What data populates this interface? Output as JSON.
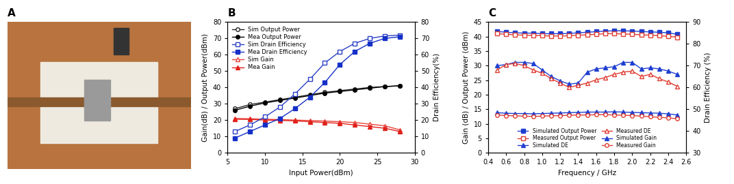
{
  "chart_data": [
    {
      "type": "photo",
      "title": "A"
    },
    {
      "type": "line",
      "title": "B",
      "x_label": "Input Power(dBm)",
      "y_label": "Gain(dB) / Output Power(dBm)",
      "y2_label": "Drain Efficiency(%)",
      "x": [
        6,
        8,
        10,
        12,
        14,
        16,
        18,
        20,
        22,
        24,
        26,
        28
      ],
      "xlim": [
        5,
        30
      ],
      "xticks": [
        5,
        10,
        15,
        20,
        25,
        30
      ],
      "ylim": [
        0,
        80
      ],
      "yticks": [
        0,
        10,
        20,
        30,
        40,
        50,
        60,
        70,
        80
      ],
      "y2lim": [
        0,
        80
      ],
      "y2ticks": [
        0,
        10,
        20,
        30,
        40,
        50,
        60,
        70,
        80
      ],
      "legend": "upper left",
      "grid": false,
      "series": [
        {
          "name": "Sim Output Power",
          "color": "#222222",
          "marker": "open_circle",
          "values": [
            27,
            29.5,
            31,
            32.5,
            34,
            35.5,
            37,
            38,
            39,
            40,
            40.5,
            41
          ]
        },
        {
          "name": "Mea Output Power",
          "color": "#000000",
          "marker": "circle",
          "values": [
            26,
            28.5,
            30.5,
            32,
            33.5,
            35,
            36.5,
            37.5,
            38.5,
            39.5,
            40.5,
            41
          ]
        },
        {
          "name": "Sim Drain Efficiency",
          "color": "#2a3fc4",
          "marker": "open_square",
          "axis": "y2",
          "values": [
            13,
            17,
            22,
            28,
            36,
            45,
            55,
            62,
            67,
            70,
            71.5,
            72
          ]
        },
        {
          "name": "Mea Drain Efficiency",
          "color": "#1530c8",
          "marker": "square",
          "axis": "y2",
          "values": [
            9,
            13,
            17,
            21,
            27,
            34,
            43,
            54,
            62,
            67,
            70,
            71
          ]
        },
        {
          "name": "Sim Gain",
          "color": "#e8433a",
          "marker": "open_triangle",
          "values": [
            21,
            20.8,
            20.5,
            20.3,
            20,
            19.7,
            19.4,
            19,
            18.5,
            17.5,
            16.5,
            14
          ]
        },
        {
          "name": "Mea Gain",
          "color": "#e0201a",
          "marker": "triangle",
          "values": [
            20.5,
            20.4,
            20,
            19.8,
            19.5,
            19,
            18.5,
            18,
            17,
            16,
            15,
            13
          ]
        }
      ]
    },
    {
      "type": "line",
      "title": "C",
      "x_label": "Frequency / GHz",
      "y_label": "Gain (dB) / Output Power (dBm)",
      "y2_label": "Drain Efficiency (%)",
      "x": [
        0.5,
        0.6,
        0.7,
        0.8,
        0.9,
        1.0,
        1.1,
        1.2,
        1.3,
        1.4,
        1.5,
        1.6,
        1.7,
        1.8,
        1.9,
        2.0,
        2.1,
        2.2,
        2.3,
        2.4,
        2.5
      ],
      "xlim": [
        0.4,
        2.6
      ],
      "xticks": [
        0.4,
        0.6,
        0.8,
        1.0,
        1.2,
        1.4,
        1.6,
        1.8,
        2.0,
        2.2,
        2.4,
        2.6
      ],
      "ylim": [
        0,
        45
      ],
      "yticks": [
        0,
        5,
        10,
        15,
        20,
        25,
        30,
        35,
        40,
        45
      ],
      "y2lim": [
        30,
        90
      ],
      "y2ticks": [
        30,
        40,
        50,
        60,
        70,
        80,
        90
      ],
      "legend": "lower center",
      "grid": false,
      "series": [
        {
          "name": "Simulated Output Power",
          "color": "#1f3fd0",
          "marker": "square",
          "values": [
            41.8,
            41.5,
            41.3,
            41.2,
            41.2,
            41,
            41,
            41,
            41.1,
            41.3,
            41.5,
            41.7,
            41.9,
            42,
            42,
            41.9,
            41.8,
            41.6,
            41.5,
            41.3,
            40.8
          ]
        },
        {
          "name": "Measured Output Power",
          "color": "#e03c31",
          "marker": "open_square",
          "values": [
            41,
            40.8,
            40.6,
            40.5,
            40.4,
            40.3,
            40.2,
            40.2,
            40.3,
            40.5,
            40.6,
            40.8,
            41,
            41,
            40.9,
            40.8,
            40.6,
            40.5,
            40.3,
            40.1,
            39.8
          ]
        },
        {
          "name": "Simulated DE",
          "color": "#1f3fd0",
          "marker": "triangle",
          "axis": "y2",
          "values": [
            70,
            70.5,
            71.5,
            71.5,
            71,
            68,
            65,
            63,
            61.5,
            62,
            67,
            68.5,
            69,
            69.5,
            71.5,
            71.5,
            68.5,
            69,
            68.5,
            67.5,
            66
          ]
        },
        {
          "name": "Measured DE",
          "color": "#e03c31",
          "marker": "open_triangle",
          "axis": "y2",
          "values": [
            68,
            70.5,
            71,
            70,
            68,
            66.5,
            64,
            62,
            60,
            61,
            62,
            63.5,
            64.5,
            66,
            67,
            67.5,
            65,
            66,
            64,
            62.5,
            60.5
          ]
        },
        {
          "name": "Simulated Gain",
          "color": "#1f3fd0",
          "marker": "triangle",
          "values": [
            13.8,
            13.6,
            13.5,
            13.5,
            13.4,
            13.5,
            13.6,
            13.7,
            13.8,
            13.9,
            14,
            14,
            14,
            14.1,
            14,
            13.9,
            13.8,
            13.7,
            13.6,
            13.4,
            13.0
          ]
        },
        {
          "name": "Measured Gain",
          "color": "#e03c31",
          "marker": "open_circle",
          "values": [
            13,
            12.8,
            12.7,
            12.6,
            12.5,
            12.6,
            12.7,
            12.8,
            12.9,
            13,
            13,
            13.1,
            13.1,
            13,
            12.9,
            12.8,
            12.6,
            12.4,
            12.2,
            12.0,
            11.7
          ]
        }
      ]
    }
  ]
}
